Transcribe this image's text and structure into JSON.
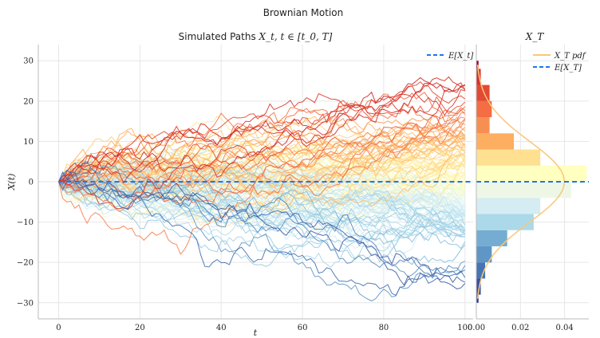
{
  "figure": {
    "suptitle": "Brownian Motion"
  },
  "chart_data": [
    {
      "type": "line",
      "panel": "paths",
      "title": "Simulated Paths X_t, t ∈ [t_0, T]",
      "title_plain": "Simulated Paths ",
      "title_math": "X_t, t ∈ [t_0, T]",
      "xlabel": "t",
      "ylabel": "X(t)",
      "xlim": [
        -5,
        102
      ],
      "ylim": [
        -34,
        34
      ],
      "xticks": [
        0,
        20,
        40,
        60,
        80,
        100
      ],
      "yticks": [
        -30,
        -20,
        -10,
        0,
        10,
        20,
        30
      ],
      "grid": true,
      "legend": {
        "placement": "top-right",
        "entries": [
          {
            "label": "E[X_t]",
            "style": "dashed",
            "color": "#1f77e8"
          }
        ]
      },
      "mean_line": {
        "y": 0,
        "x": [
          0,
          102
        ],
        "color": "#1f77e8"
      },
      "paths": {
        "count": 150,
        "t_start": 0,
        "t_end": 100,
        "x0": 0,
        "sigma": 1,
        "colormap": "RdYlBu_r",
        "colormap_stops": [
          "#313695",
          "#4575b4",
          "#74add1",
          "#abd9e9",
          "#e0f3f8",
          "#ffffbf",
          "#fee090",
          "#fdae61",
          "#f46d43",
          "#d73027",
          "#a50026"
        ],
        "color_by": "final value",
        "final_value_range": [
          -29,
          29
        ]
      }
    },
    {
      "type": "bar",
      "panel": "terminal-distribution",
      "orientation": "horizontal",
      "title": "X_T",
      "xlim": [
        0,
        0.051
      ],
      "ylim": [
        -34,
        34
      ],
      "xticks": [
        0.0,
        0.02,
        0.04
      ],
      "xtick_labels": [
        "0.00",
        "0.02",
        "0.04"
      ],
      "grid": true,
      "legend": {
        "placement": "top-right",
        "entries": [
          {
            "label": "X_T pdf",
            "style": "solid",
            "color": "#f9c77a"
          },
          {
            "label": "E[X_T]",
            "style": "dashed",
            "color": "#1f77e8"
          }
        ]
      },
      "bins": [
        {
          "y0": -30,
          "y1": -28,
          "density": 0.001,
          "color": "#313695"
        },
        {
          "y0": -28,
          "y1": -24,
          "density": 0.002,
          "color": "#3a4fa0"
        },
        {
          "y0": -24,
          "y1": -20,
          "density": 0.004,
          "color": "#4575b4"
        },
        {
          "y0": -20,
          "y1": -16,
          "density": 0.007,
          "color": "#6096c6"
        },
        {
          "y0": -16,
          "y1": -12,
          "density": 0.014,
          "color": "#74add1"
        },
        {
          "y0": -12,
          "y1": -8,
          "density": 0.026,
          "color": "#abd9e9"
        },
        {
          "y0": -8,
          "y1": -4,
          "density": 0.029,
          "color": "#d4ecf2"
        },
        {
          "y0": -4,
          "y1": 0,
          "density": 0.043,
          "color": "#eef7e6"
        },
        {
          "y0": 0,
          "y1": 4,
          "density": 0.05,
          "color": "#ffffbf"
        },
        {
          "y0": 4,
          "y1": 8,
          "density": 0.029,
          "color": "#fee090"
        },
        {
          "y0": 8,
          "y1": 12,
          "density": 0.017,
          "color": "#fdae61"
        },
        {
          "y0": 12,
          "y1": 16,
          "density": 0.006,
          "color": "#f88f52"
        },
        {
          "y0": 16,
          "y1": 20,
          "density": 0.007,
          "color": "#f46d43"
        },
        {
          "y0": 20,
          "y1": 24,
          "density": 0.006,
          "color": "#e34a33"
        },
        {
          "y0": 24,
          "y1": 28,
          "density": 0.002,
          "color": "#d73027"
        },
        {
          "y0": 28,
          "y1": 30,
          "density": 0.001,
          "color": "#a50026"
        }
      ],
      "pdf": {
        "mean": 0,
        "std": 10,
        "color": "#f9c77a"
      },
      "mean_line": {
        "y": 0,
        "color": "#1f77e8"
      }
    }
  ]
}
